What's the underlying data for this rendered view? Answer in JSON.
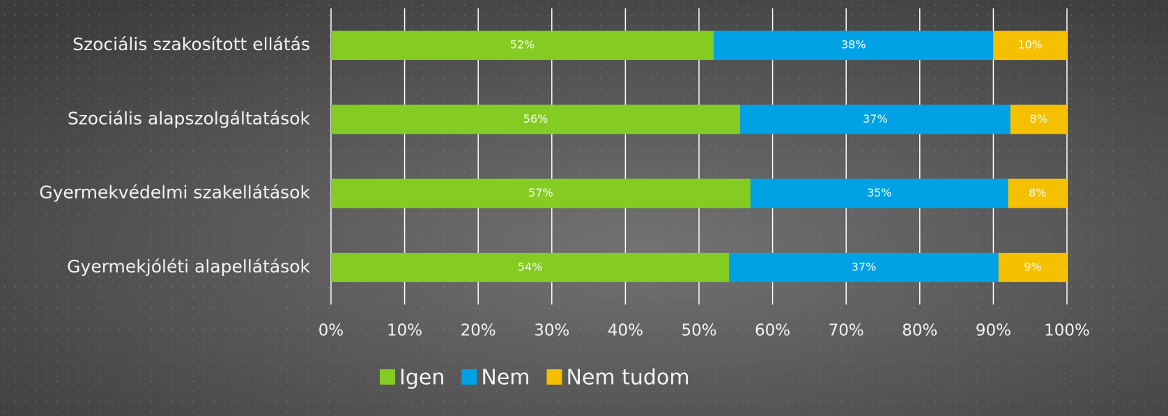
{
  "chart_data": {
    "type": "stacked-bar-horizontal",
    "categories": [
      "Szociális szakosított ellátás",
      "Szociális alapszolgáltatások",
      "Gyermekvédelmi szakellátások",
      "Gyermekjóléti alapellátások"
    ],
    "series": [
      {
        "name": "Igen",
        "color": "#84cc22",
        "values": [
          52,
          55.6,
          57,
          54.1
        ],
        "value_labels": [
          "52%",
          "56%",
          "57%",
          "54%"
        ]
      },
      {
        "name": "Nem",
        "color": "#00a2e5",
        "values": [
          38,
          36.7,
          35,
          36.6
        ],
        "value_labels": [
          "38%",
          "37%",
          "35%",
          "37%"
        ]
      },
      {
        "name": "Nem tudom",
        "color": "#f5c000",
        "values": [
          10,
          7.7,
          8,
          9.3
        ],
        "value_labels": [
          "10%",
          "8%",
          "8%",
          "9%"
        ]
      }
    ],
    "xlim": [
      0,
      100
    ],
    "xticks": [
      {
        "value": 0,
        "label": "0%"
      },
      {
        "value": 10,
        "label": "10%"
      },
      {
        "value": 20,
        "label": "20%"
      },
      {
        "value": 30,
        "label": "30%"
      },
      {
        "value": 40,
        "label": "40%"
      },
      {
        "value": 50,
        "label": "50%"
      },
      {
        "value": 60,
        "label": "60%"
      },
      {
        "value": 70,
        "label": "70%"
      },
      {
        "value": 80,
        "label": "80%"
      },
      {
        "value": 90,
        "label": "90%"
      },
      {
        "value": 100,
        "label": "100%"
      }
    ],
    "grid": true,
    "legend": "bottom"
  }
}
